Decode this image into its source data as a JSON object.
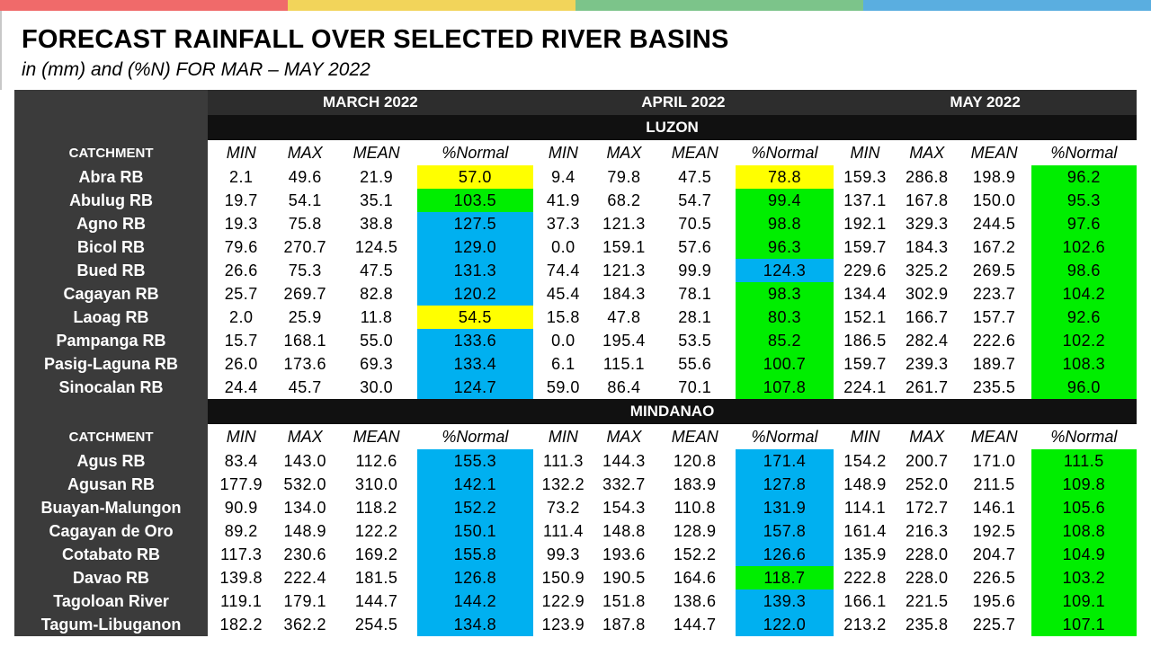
{
  "top_bar_colors": [
    "#f06a6a",
    "#f2d45a",
    "#7cc48a",
    "#5aaee0"
  ],
  "title": "FORECAST RAINFALL OVER SELECTED RIVER BASINS",
  "subtitle": "in (mm) and (%N) FOR MAR – MAY 2022",
  "months": [
    "MARCH 2022",
    "APRIL 2022",
    "MAY 2022"
  ],
  "column_label": "CATCHMENT",
  "subcolumns": [
    "MIN",
    "MAX",
    "MEAN",
    "%Normal"
  ],
  "category_colors": {
    "yellow": "#ffff00",
    "green": "#00ee00",
    "blue": "#00b0f0"
  },
  "sections": [
    {
      "name": "LUZON",
      "rows": [
        {
          "name": "Abra RB",
          "v": [
            "2.1",
            "49.6",
            "21.9",
            "57.0",
            "9.4",
            "79.8",
            "47.5",
            "78.8",
            "159.3",
            "286.8",
            "198.9",
            "96.2"
          ],
          "c": [
            "yellow",
            "yellow",
            "green"
          ]
        },
        {
          "name": "Abulug RB",
          "v": [
            "19.7",
            "54.1",
            "35.1",
            "103.5",
            "41.9",
            "68.2",
            "54.7",
            "99.4",
            "137.1",
            "167.8",
            "150.0",
            "95.3"
          ],
          "c": [
            "green",
            "green",
            "green"
          ]
        },
        {
          "name": "Agno RB",
          "v": [
            "19.3",
            "75.8",
            "38.8",
            "127.5",
            "37.3",
            "121.3",
            "70.5",
            "98.8",
            "192.1",
            "329.3",
            "244.5",
            "97.6"
          ],
          "c": [
            "blue",
            "green",
            "green"
          ]
        },
        {
          "name": "Bicol RB",
          "v": [
            "79.6",
            "270.7",
            "124.5",
            "129.0",
            "0.0",
            "159.1",
            "57.6",
            "96.3",
            "159.7",
            "184.3",
            "167.2",
            "102.6"
          ],
          "c": [
            "blue",
            "green",
            "green"
          ]
        },
        {
          "name": "Bued RB",
          "v": [
            "26.6",
            "75.3",
            "47.5",
            "131.3",
            "74.4",
            "121.3",
            "99.9",
            "124.3",
            "229.6",
            "325.2",
            "269.5",
            "98.6"
          ],
          "c": [
            "blue",
            "blue",
            "green"
          ]
        },
        {
          "name": "Cagayan RB",
          "v": [
            "25.7",
            "269.7",
            "82.8",
            "120.2",
            "45.4",
            "184.3",
            "78.1",
            "98.3",
            "134.4",
            "302.9",
            "223.7",
            "104.2"
          ],
          "c": [
            "blue",
            "green",
            "green"
          ]
        },
        {
          "name": "Laoag RB",
          "v": [
            "2.0",
            "25.9",
            "11.8",
            "54.5",
            "15.8",
            "47.8",
            "28.1",
            "80.3",
            "152.1",
            "166.7",
            "157.7",
            "92.6"
          ],
          "c": [
            "yellow",
            "green",
            "green"
          ]
        },
        {
          "name": "Pampanga RB",
          "v": [
            "15.7",
            "168.1",
            "55.0",
            "133.6",
            "0.0",
            "195.4",
            "53.5",
            "85.2",
            "186.5",
            "282.4",
            "222.6",
            "102.2"
          ],
          "c": [
            "blue",
            "green",
            "green"
          ]
        },
        {
          "name": "Pasig-Laguna RB",
          "v": [
            "26.0",
            "173.6",
            "69.3",
            "133.4",
            "6.1",
            "115.1",
            "55.6",
            "100.7",
            "159.7",
            "239.3",
            "189.7",
            "108.3"
          ],
          "c": [
            "blue",
            "green",
            "green"
          ]
        },
        {
          "name": "Sinocalan RB",
          "v": [
            "24.4",
            "45.7",
            "30.0",
            "124.7",
            "59.0",
            "86.4",
            "70.1",
            "107.8",
            "224.1",
            "261.7",
            "235.5",
            "96.0"
          ],
          "c": [
            "blue",
            "green",
            "green"
          ]
        }
      ]
    },
    {
      "name": "MINDANAO",
      "rows": [
        {
          "name": "Agus RB",
          "v": [
            "83.4",
            "143.0",
            "112.6",
            "155.3",
            "111.3",
            "144.3",
            "120.8",
            "171.4",
            "154.2",
            "200.7",
            "171.0",
            "111.5"
          ],
          "c": [
            "blue",
            "blue",
            "green"
          ]
        },
        {
          "name": "Agusan RB",
          "v": [
            "177.9",
            "532.0",
            "310.0",
            "142.1",
            "132.2",
            "332.7",
            "183.9",
            "127.8",
            "148.9",
            "252.0",
            "211.5",
            "109.8"
          ],
          "c": [
            "blue",
            "blue",
            "green"
          ]
        },
        {
          "name": "Buayan-Malungon",
          "v": [
            "90.9",
            "134.0",
            "118.2",
            "152.2",
            "73.2",
            "154.3",
            "110.8",
            "131.9",
            "114.1",
            "172.7",
            "146.1",
            "105.6"
          ],
          "c": [
            "blue",
            "blue",
            "green"
          ]
        },
        {
          "name": "Cagayan de Oro",
          "v": [
            "89.2",
            "148.9",
            "122.2",
            "150.1",
            "111.4",
            "148.8",
            "128.9",
            "157.8",
            "161.4",
            "216.3",
            "192.5",
            "108.8"
          ],
          "c": [
            "blue",
            "blue",
            "green"
          ]
        },
        {
          "name": "Cotabato RB",
          "v": [
            "117.3",
            "230.6",
            "169.2",
            "155.8",
            "99.3",
            "193.6",
            "152.2",
            "126.6",
            "135.9",
            "228.0",
            "204.7",
            "104.9"
          ],
          "c": [
            "blue",
            "blue",
            "green"
          ]
        },
        {
          "name": "Davao RB",
          "v": [
            "139.8",
            "222.4",
            "181.5",
            "126.8",
            "150.9",
            "190.5",
            "164.6",
            "118.7",
            "222.8",
            "228.0",
            "226.5",
            "103.2"
          ],
          "c": [
            "blue",
            "green",
            "green"
          ]
        },
        {
          "name": "Tagoloan River",
          "v": [
            "119.1",
            "179.1",
            "144.7",
            "144.2",
            "122.9",
            "151.8",
            "138.6",
            "139.3",
            "166.1",
            "221.5",
            "195.6",
            "109.1"
          ],
          "c": [
            "blue",
            "blue",
            "green"
          ]
        },
        {
          "name": "Tagum-Libuganon",
          "v": [
            "182.2",
            "362.2",
            "254.5",
            "134.8",
            "123.9",
            "187.8",
            "144.7",
            "122.0",
            "213.2",
            "235.8",
            "225.7",
            "107.1"
          ],
          "c": [
            "blue",
            "blue",
            "green"
          ]
        }
      ]
    }
  ]
}
